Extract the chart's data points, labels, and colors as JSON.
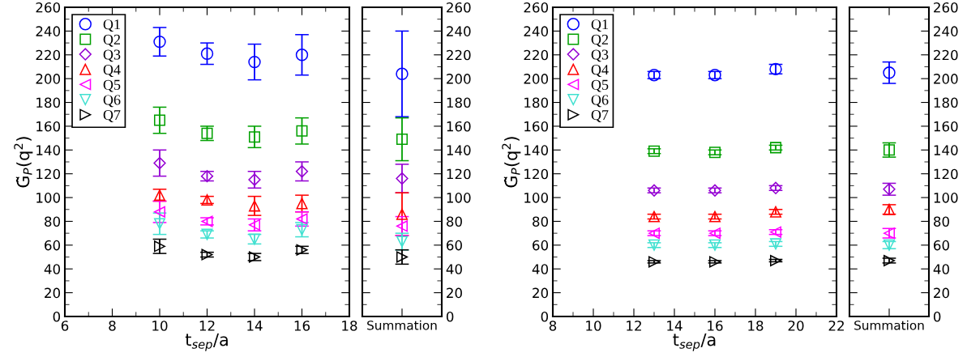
{
  "chart_data": [
    {
      "type": "scatter",
      "xlabel": "t$_{sep}$/a",
      "ylabel": "G̃$_{P}$(q$^{2}$)",
      "x": [
        10,
        12,
        14,
        16
      ],
      "xlim": [
        6,
        18
      ],
      "xticks": [
        6,
        8,
        10,
        12,
        14,
        16,
        18
      ],
      "ylim": [
        0,
        260
      ],
      "yticks": [
        0,
        20,
        40,
        60,
        80,
        100,
        120,
        140,
        160,
        180,
        200,
        220,
        240,
        260
      ],
      "legend": "top left",
      "grid": false,
      "series": [
        {
          "name": "Q1",
          "color": "#0000ff",
          "marker": "circle",
          "values": [
            231,
            221,
            214,
            220
          ],
          "errors": [
            12,
            9,
            15,
            17
          ]
        },
        {
          "name": "Q2",
          "color": "#00a000",
          "marker": "square",
          "values": [
            165,
            154,
            151,
            156
          ],
          "errors": [
            11,
            6,
            9,
            11
          ]
        },
        {
          "name": "Q3",
          "color": "#9400d3",
          "marker": "diamond",
          "values": [
            129,
            118,
            115,
            122
          ],
          "errors": [
            11,
            4,
            7,
            8
          ]
        },
        {
          "name": "Q4",
          "color": "#ff0000",
          "marker": "triangle",
          "values": [
            102,
            98,
            93,
            95
          ],
          "errors": [
            5,
            3,
            8,
            7
          ]
        },
        {
          "name": "Q5",
          "color": "#ff00ff",
          "marker": "triangle-left",
          "values": [
            88,
            80,
            77,
            82
          ],
          "errors": [
            9,
            3,
            5,
            6
          ]
        },
        {
          "name": "Q6",
          "color": "#40e0d0",
          "marker": "triangle-down",
          "values": [
            78,
            69,
            65,
            73
          ],
          "errors": [
            9,
            3,
            4,
            6
          ]
        },
        {
          "name": "Q7",
          "color": "#000000",
          "marker": "triangle-right",
          "values": [
            59,
            52,
            50,
            56
          ],
          "errors": [
            6,
            2,
            3,
            3
          ]
        }
      ]
    },
    {
      "type": "scatter",
      "categories": [
        "Summation"
      ],
      "ylim": [
        0,
        260
      ],
      "yticks": [
        0,
        20,
        40,
        60,
        80,
        100,
        120,
        140,
        160,
        180,
        200,
        220,
        240,
        260
      ],
      "grid": false,
      "series": [
        {
          "color": "#0000ff",
          "marker": "circle",
          "values": [
            204
          ],
          "errors": [
            36
          ]
        },
        {
          "color": "#00a000",
          "marker": "square",
          "values": [
            149
          ],
          "errors": [
            18
          ]
        },
        {
          "color": "#9400d3",
          "marker": "diamond",
          "values": [
            116
          ],
          "errors": [
            12
          ]
        },
        {
          "color": "#ff0000",
          "marker": "triangle",
          "values": [
            86
          ],
          "errors": [
            18
          ]
        },
        {
          "color": "#ff00ff",
          "marker": "triangle-left",
          "values": [
            76
          ],
          "errors": [
            8
          ]
        },
        {
          "color": "#40e0d0",
          "marker": "triangle-down",
          "values": [
            63
          ],
          "errors": [
            7
          ]
        },
        {
          "color": "#000000",
          "marker": "triangle-right",
          "values": [
            50
          ],
          "errors": [
            6
          ]
        }
      ]
    },
    {
      "type": "scatter",
      "xlabel": "t$_{sep}$/a",
      "ylabel": "G̃$_{P}$(q$^{2}$)",
      "x": [
        13,
        16,
        19
      ],
      "xlim": [
        8,
        22
      ],
      "xticks": [
        8,
        10,
        12,
        14,
        16,
        18,
        20,
        22
      ],
      "ylim": [
        0,
        260
      ],
      "yticks": [
        0,
        20,
        40,
        60,
        80,
        100,
        120,
        140,
        160,
        180,
        200,
        220,
        240,
        260
      ],
      "legend": "top left",
      "grid": false,
      "series": [
        {
          "name": "Q1",
          "color": "#0000ff",
          "marker": "circle",
          "values": [
            203,
            203,
            208
          ],
          "errors": [
            3,
            3,
            4
          ]
        },
        {
          "name": "Q2",
          "color": "#00a000",
          "marker": "square",
          "values": [
            139,
            138,
            142
          ],
          "errors": [
            2,
            2,
            2
          ]
        },
        {
          "name": "Q3",
          "color": "#9400d3",
          "marker": "diamond",
          "values": [
            106,
            106,
            108
          ],
          "errors": [
            2,
            2,
            2
          ]
        },
        {
          "name": "Q4",
          "color": "#ff0000",
          "marker": "triangle",
          "values": [
            84,
            84,
            88
          ],
          "errors": [
            2,
            2,
            2
          ]
        },
        {
          "name": "Q5",
          "color": "#ff00ff",
          "marker": "triangle-left",
          "values": [
            70,
            70,
            71
          ],
          "errors": [
            2,
            2,
            2
          ]
        },
        {
          "name": "Q6",
          "color": "#40e0d0",
          "marker": "triangle-down",
          "values": [
            60,
            60,
            61
          ],
          "errors": [
            2,
            2,
            2
          ]
        },
        {
          "name": "Q7",
          "color": "#000000",
          "marker": "triangle-right",
          "values": [
            46,
            46,
            47
          ],
          "errors": [
            1,
            1,
            1
          ]
        }
      ]
    },
    {
      "type": "scatter",
      "categories": [
        "Summation"
      ],
      "ylim": [
        0,
        260
      ],
      "yticks": [
        0,
        20,
        40,
        60,
        80,
        100,
        120,
        140,
        160,
        180,
        200,
        220,
        240,
        260
      ],
      "grid": false,
      "series": [
        {
          "color": "#0000ff",
          "marker": "circle",
          "values": [
            205
          ],
          "errors": [
            9
          ]
        },
        {
          "color": "#00a000",
          "marker": "square",
          "values": [
            140
          ],
          "errors": [
            6
          ]
        },
        {
          "color": "#9400d3",
          "marker": "diamond",
          "values": [
            107
          ],
          "errors": [
            5
          ]
        },
        {
          "color": "#ff0000",
          "marker": "triangle",
          "values": [
            90
          ],
          "errors": [
            4
          ]
        },
        {
          "color": "#ff00ff",
          "marker": "triangle-left",
          "values": [
            70
          ],
          "errors": [
            4
          ]
        },
        {
          "color": "#40e0d0",
          "marker": "triangle-down",
          "values": [
            60
          ],
          "errors": [
            3
          ]
        },
        {
          "color": "#000000",
          "marker": "triangle-right",
          "values": [
            47
          ],
          "errors": [
            2
          ]
        }
      ]
    }
  ]
}
